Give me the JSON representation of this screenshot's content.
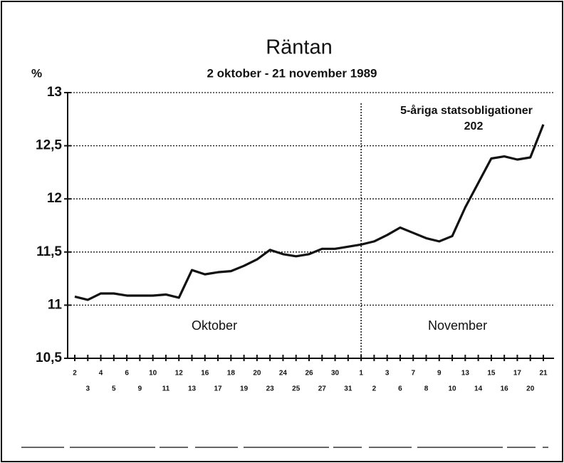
{
  "chart_data": {
    "type": "line",
    "title": "Räntan",
    "subtitle": "2 oktober - 21 november 1989",
    "y_label": "%",
    "categories": [
      "2",
      "3",
      "4",
      "5",
      "6",
      "9",
      "10",
      "11",
      "12",
      "13",
      "16",
      "17",
      "18",
      "19",
      "20",
      "23",
      "24",
      "25",
      "26",
      "27",
      "30",
      "31",
      "1",
      "2",
      "3",
      "6",
      "7",
      "8",
      "9",
      "10",
      "13",
      "14",
      "15",
      "16",
      "17",
      "20",
      "21"
    ],
    "series": [
      {
        "name": "5-åriga statsobligationer",
        "color": "#111111",
        "values": [
          11.08,
          11.05,
          11.11,
          11.11,
          11.09,
          11.09,
          11.09,
          11.1,
          11.07,
          11.33,
          11.29,
          11.31,
          11.32,
          11.37,
          11.43,
          11.52,
          11.48,
          11.46,
          11.48,
          11.53,
          11.53,
          11.55,
          11.57,
          11.6,
          11.66,
          11.73,
          11.68,
          11.63,
          11.6,
          11.65,
          11.92,
          12.15,
          12.38,
          12.4,
          12.37,
          12.39,
          12.7
        ]
      }
    ],
    "annotation": "202",
    "months": [
      "Oktober",
      "November"
    ],
    "ylim": [
      10.5,
      13
    ],
    "yticks": [
      {
        "value": 10.5,
        "label": "10,5"
      },
      11,
      {
        "value": 11.5,
        "label": "11,5"
      },
      12,
      {
        "value": 12.5,
        "label": "12,5"
      },
      13
    ],
    "grid": true
  }
}
